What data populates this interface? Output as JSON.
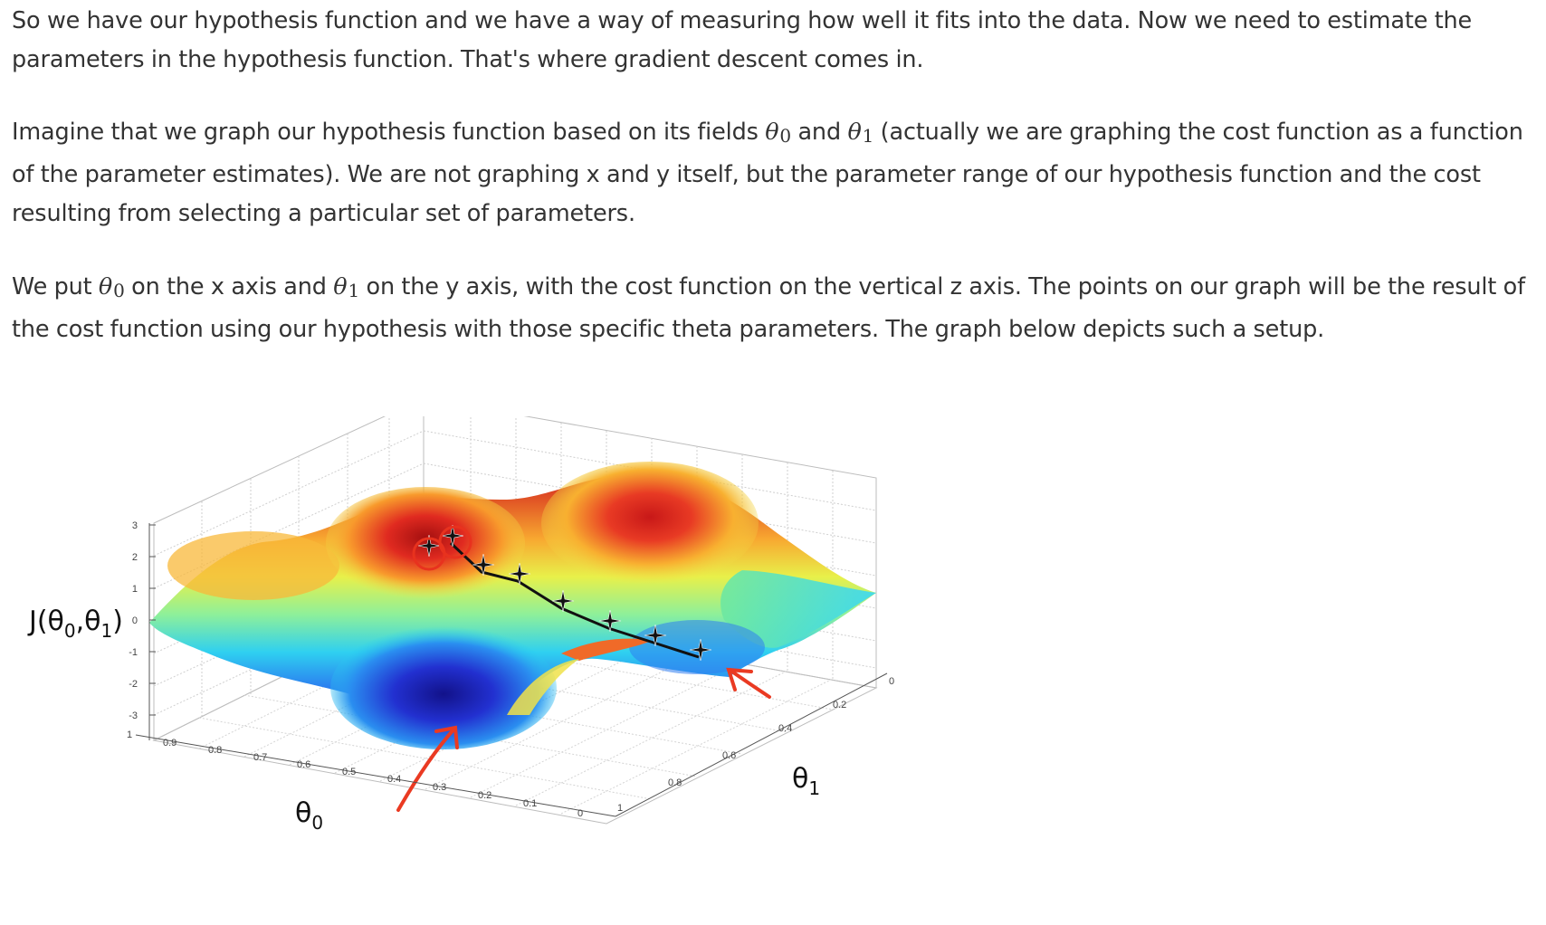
{
  "paragraphs": {
    "p1": "So we have our hypothesis function and we have a way of measuring how well it fits into the data. Now we need to estimate the parameters in the hypothesis function. That's where gradient descent comes in.",
    "p2_a": "Imagine that we graph our hypothesis function based on its fields ",
    "p2_b": " and ",
    "p2_c": " (actually we are graphing the cost function as a function of the parameter estimates). We are not graphing x and y itself, but the parameter range of our hypothesis function and the cost resulting from selecting a particular set of parameters.",
    "p3_a": "We put ",
    "p3_b": " on the x axis and ",
    "p3_c": " on the y axis, with the cost function on the vertical z axis. The points on our graph will be the result of the cost function using our hypothesis with those specific theta parameters. The graph below depicts such a setup."
  },
  "math": {
    "theta": "θ",
    "sub0": "0",
    "sub1": "1"
  },
  "figure": {
    "z_label": "J(θ",
    "z_label_mid": ",θ",
    "z_label_end": ")",
    "x_label": "θ",
    "y_label": "θ",
    "z_ticks": [
      "3",
      "2",
      "1",
      "0",
      "-1",
      "-2",
      "-3"
    ],
    "x_ticks": [
      "1",
      "0.9",
      "0.8",
      "0.7",
      "0.6",
      "0.5",
      "0.4",
      "0.3",
      "0.2",
      "0.1",
      "0"
    ],
    "y_ticks": [
      "1",
      "0.8",
      "0.6",
      "0.4",
      "0.2",
      "0"
    ],
    "colors": {
      "path": "#111111",
      "marker_circle": "#e8321e",
      "arrow": "#ea3a22"
    }
  }
}
